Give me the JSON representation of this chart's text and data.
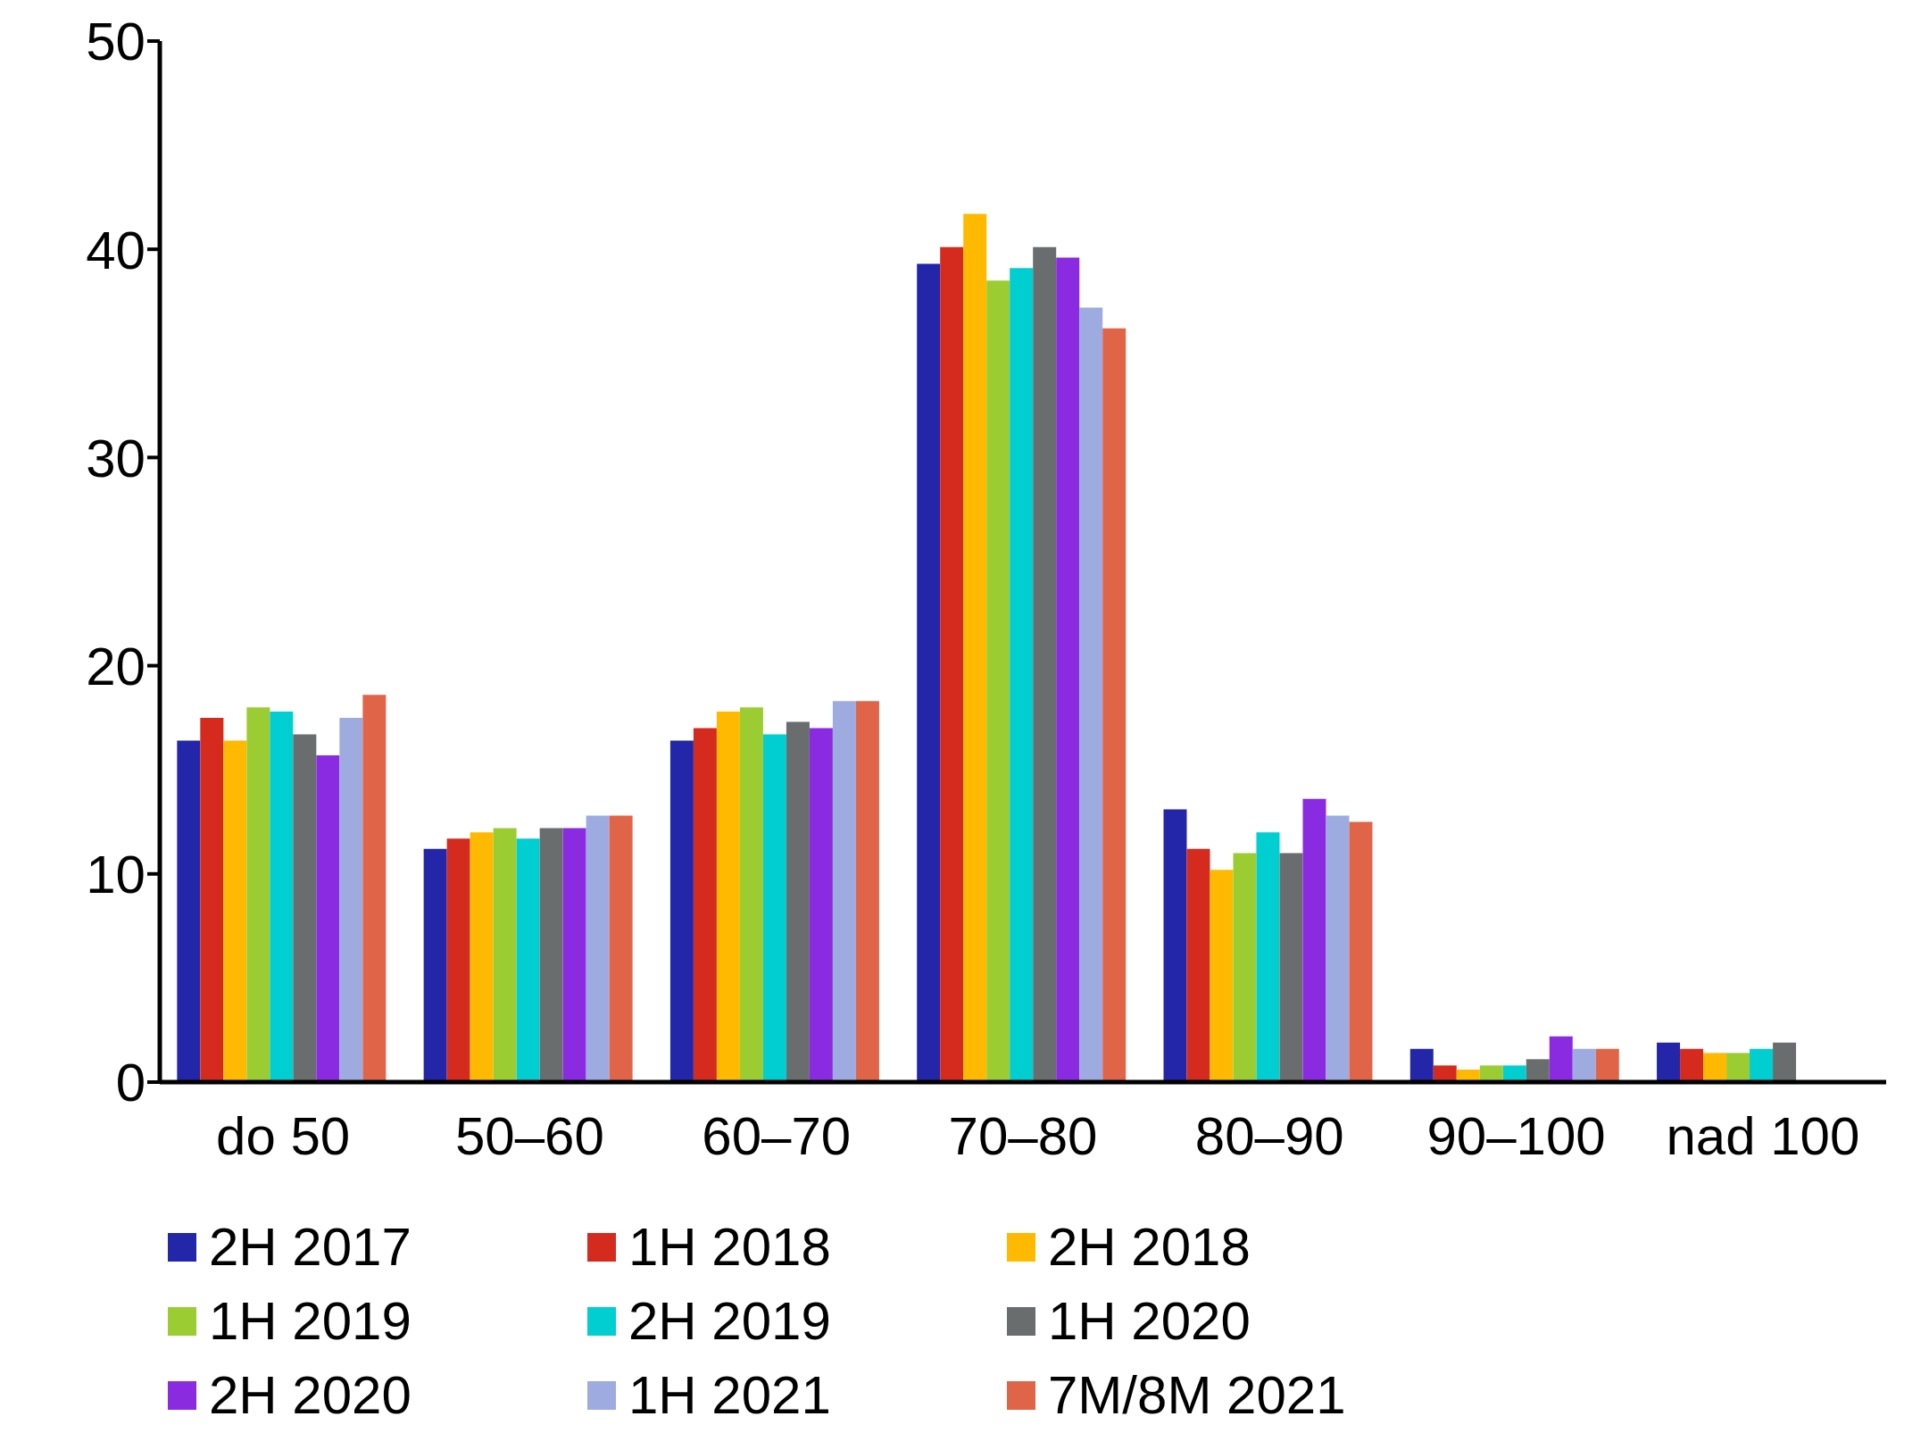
{
  "chart_data": {
    "type": "bar",
    "categories": [
      "do 50",
      "50–60",
      "60–70",
      "70–80",
      "80–90",
      "90–100",
      "nad 100"
    ],
    "series": [
      {
        "name": "2H 2017",
        "color": "#2326a8",
        "values": [
          16.4,
          11.2,
          16.4,
          39.3,
          13.1,
          1.6,
          1.9
        ]
      },
      {
        "name": "1H 2018",
        "color": "#d52b1e",
        "values": [
          17.5,
          11.7,
          17.0,
          40.1,
          11.2,
          0.8,
          1.6
        ]
      },
      {
        "name": "2H 2018",
        "color": "#ffba00",
        "values": [
          16.4,
          12.0,
          17.8,
          41.7,
          10.2,
          0.6,
          1.4
        ]
      },
      {
        "name": "1H 2019",
        "color": "#9bcd33",
        "values": [
          18.0,
          12.2,
          18.0,
          38.5,
          11.0,
          0.8,
          1.4
        ]
      },
      {
        "name": "2H 2019",
        "color": "#00ced1",
        "values": [
          17.8,
          11.7,
          16.7,
          39.1,
          12.0,
          0.8,
          1.6
        ]
      },
      {
        "name": "1H 2020",
        "color": "#6a6d6e",
        "values": [
          16.7,
          12.2,
          17.3,
          40.1,
          11.0,
          1.1,
          1.9
        ]
      },
      {
        "name": "2H 2020",
        "color": "#8a2be2",
        "values": [
          15.7,
          12.2,
          17.0,
          39.6,
          13.6,
          2.2,
          null
        ]
      },
      {
        "name": "1H 2021",
        "color": "#9eabe0",
        "values": [
          17.5,
          12.8,
          18.3,
          37.2,
          12.8,
          1.6,
          null
        ]
      },
      {
        "name": "7M/8M 2021",
        "color": "#e06548",
        "values": [
          18.6,
          12.8,
          18.3,
          36.2,
          12.5,
          1.6,
          null
        ]
      }
    ],
    "ylim": [
      0,
      50
    ],
    "yticks": [
      0,
      10,
      20,
      30,
      40,
      50
    ],
    "grid": false,
    "legend": "bottom"
  }
}
